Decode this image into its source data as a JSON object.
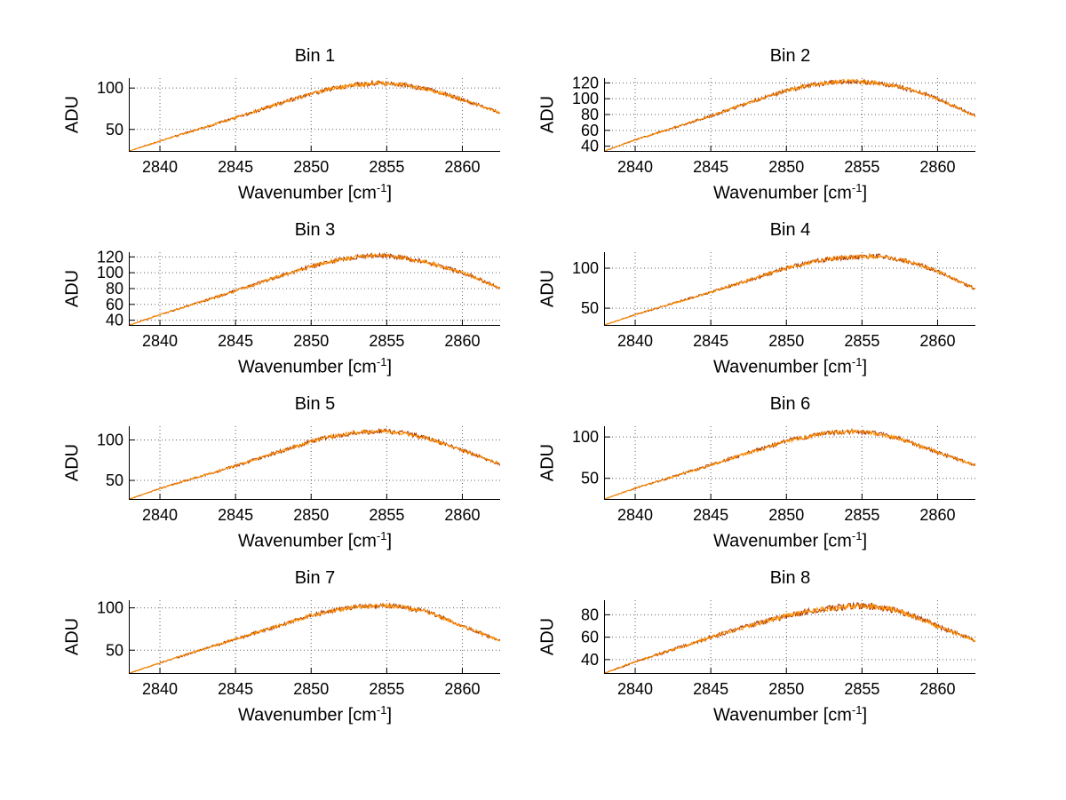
{
  "styles": {
    "background": "#ffffff",
    "line_colors": [
      "#a83200",
      "#ff9100"
    ],
    "grid_color": "#606060",
    "axis_color": "#000000",
    "text_color": "#000000"
  },
  "chart_data": [
    {
      "type": "line",
      "title": "Bin 1",
      "xlabel": "Wavenumber [cm⁻¹]",
      "xlabel_base": "Wavenumber [cm",
      "xlabel_sup": "-1",
      "xlabel_end": "]",
      "ylabel": "ADU",
      "xlim": [
        2838,
        2862.5
      ],
      "xticks": [
        2840,
        2845,
        2850,
        2855,
        2860
      ],
      "ylim": [
        24,
        112
      ],
      "yticks": [
        50,
        100
      ],
      "x": [
        2838,
        2840,
        2842.5,
        2845,
        2847.5,
        2850,
        2851.5,
        2853,
        2854.5,
        2856,
        2857.5,
        2859,
        2860.5,
        2862.5
      ],
      "y": [
        24,
        36,
        50,
        64,
        79,
        93,
        100,
        104,
        106,
        104,
        99,
        92,
        83,
        70
      ]
    },
    {
      "type": "line",
      "title": "Bin 2",
      "xlabel": "Wavenumber [cm⁻¹]",
      "xlabel_base": "Wavenumber [cm",
      "xlabel_sup": "-1",
      "xlabel_end": "]",
      "ylabel": "ADU",
      "xlim": [
        2838,
        2862.5
      ],
      "xticks": [
        2840,
        2845,
        2850,
        2855,
        2860
      ],
      "ylim": [
        34,
        126
      ],
      "yticks": [
        40,
        60,
        80,
        100,
        120
      ],
      "x": [
        2838,
        2840,
        2842.5,
        2845,
        2847.5,
        2850,
        2851.5,
        2853,
        2854.5,
        2856,
        2857.5,
        2859,
        2860.5,
        2862.5
      ],
      "y": [
        34,
        48,
        63,
        78,
        95,
        110,
        117,
        121,
        122,
        120,
        115,
        107,
        96,
        78
      ]
    },
    {
      "type": "line",
      "title": "Bin 3",
      "xlabel": "Wavenumber [cm⁻¹]",
      "xlabel_base": "Wavenumber [cm",
      "xlabel_sup": "-1",
      "xlabel_end": "]",
      "ylabel": "ADU",
      "xlim": [
        2838,
        2862.5
      ],
      "xticks": [
        2840,
        2845,
        2850,
        2855,
        2860
      ],
      "ylim": [
        34,
        126
      ],
      "yticks": [
        40,
        60,
        80,
        100,
        120
      ],
      "x": [
        2838,
        2840,
        2842.5,
        2845,
        2847.5,
        2850,
        2851.5,
        2853,
        2854.5,
        2856,
        2857.5,
        2859,
        2860.5,
        2862.5
      ],
      "y": [
        34,
        47,
        62,
        77,
        93,
        108,
        115,
        120,
        122,
        119,
        114,
        106,
        97,
        80
      ]
    },
    {
      "type": "line",
      "title": "Bin 4",
      "xlabel": "Wavenumber [cm⁻¹]",
      "xlabel_base": "Wavenumber [cm",
      "xlabel_sup": "-1",
      "xlabel_end": "]",
      "ylabel": "ADU",
      "xlim": [
        2838,
        2862.5
      ],
      "xticks": [
        2840,
        2845,
        2850,
        2855,
        2860
      ],
      "ylim": [
        29,
        120
      ],
      "yticks": [
        50,
        100
      ],
      "x": [
        2838,
        2840,
        2842.5,
        2845,
        2847.5,
        2850,
        2851.5,
        2853,
        2854.5,
        2856,
        2857.5,
        2859,
        2860.5,
        2862.5
      ],
      "y": [
        29,
        42,
        56,
        70,
        85,
        100,
        107,
        112,
        114,
        115,
        111,
        103,
        92,
        74
      ]
    },
    {
      "type": "line",
      "title": "Bin 5",
      "xlabel": "Wavenumber [cm⁻¹]",
      "xlabel_base": "Wavenumber [cm",
      "xlabel_sup": "-1",
      "xlabel_end": "]",
      "ylabel": "ADU",
      "xlim": [
        2838,
        2862.5
      ],
      "xticks": [
        2840,
        2845,
        2850,
        2855,
        2860
      ],
      "ylim": [
        27,
        117
      ],
      "yticks": [
        50,
        100
      ],
      "x": [
        2838,
        2840,
        2842.5,
        2845,
        2847.5,
        2850,
        2851.5,
        2853,
        2854.5,
        2856,
        2857.5,
        2859,
        2860.5,
        2862.5
      ],
      "y": [
        27,
        40,
        54,
        68,
        83,
        98,
        105,
        109,
        111,
        109,
        103,
        94,
        84,
        70
      ]
    },
    {
      "type": "line",
      "title": "Bin 6",
      "xlabel": "Wavenumber [cm⁻¹]",
      "xlabel_base": "Wavenumber [cm",
      "xlabel_sup": "-1",
      "xlabel_end": "]",
      "ylabel": "ADU",
      "xlim": [
        2838,
        2862.5
      ],
      "xticks": [
        2840,
        2845,
        2850,
        2855,
        2860
      ],
      "ylim": [
        25,
        113
      ],
      "yticks": [
        50,
        100
      ],
      "x": [
        2838,
        2840,
        2842.5,
        2845,
        2847.5,
        2850,
        2851.5,
        2853,
        2854.5,
        2856,
        2857.5,
        2859,
        2860.5,
        2862.5
      ],
      "y": [
        25,
        38,
        52,
        66,
        81,
        95,
        101,
        105,
        107,
        104,
        98,
        88,
        78,
        66
      ]
    },
    {
      "type": "line",
      "title": "Bin 7",
      "xlabel": "Wavenumber [cm⁻¹]",
      "xlabel_base": "Wavenumber [cm",
      "xlabel_sup": "-1",
      "xlabel_end": "]",
      "ylabel": "ADU",
      "xlim": [
        2838,
        2862.5
      ],
      "xticks": [
        2840,
        2845,
        2850,
        2855,
        2860
      ],
      "ylim": [
        23,
        109
      ],
      "yticks": [
        50,
        100
      ],
      "x": [
        2838,
        2840,
        2842.5,
        2845,
        2847.5,
        2850,
        2851.5,
        2853,
        2854.5,
        2856,
        2857.5,
        2859,
        2860.5,
        2862.5
      ],
      "y": [
        23,
        35,
        49,
        63,
        77,
        91,
        97,
        101,
        103,
        101,
        96,
        86,
        75,
        61
      ]
    },
    {
      "type": "line",
      "title": "Bin 8",
      "xlabel": "Wavenumber [cm⁻¹]",
      "xlabel_base": "Wavenumber [cm",
      "xlabel_sup": "-1",
      "xlabel_end": "]",
      "ylabel": "ADU",
      "xlim": [
        2838,
        2862.5
      ],
      "xticks": [
        2840,
        2845,
        2850,
        2855,
        2860
      ],
      "ylim": [
        28,
        93
      ],
      "yticks": [
        40,
        60,
        80
      ],
      "x": [
        2838,
        2840,
        2842.5,
        2845,
        2847.5,
        2850,
        2851.5,
        2853,
        2854.5,
        2856,
        2857.5,
        2859,
        2860.5,
        2862.5
      ],
      "y": [
        28,
        38,
        49,
        60,
        70,
        79,
        83,
        86,
        88,
        87,
        83,
        76,
        67,
        57
      ]
    }
  ]
}
